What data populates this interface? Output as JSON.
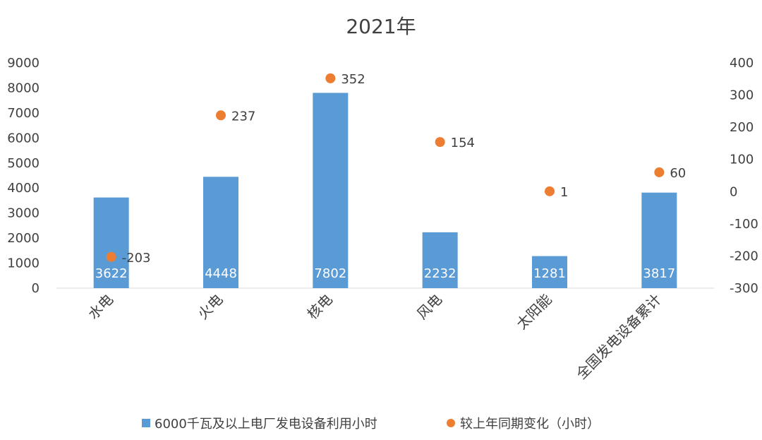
{
  "colors": {
    "bar": "#5b9bd5",
    "dot": "#ed7d31",
    "axis": "#d9d9d9",
    "text": "#404040"
  },
  "chart_data": {
    "type": "bar",
    "title": "2021年",
    "categories": [
      "水电",
      "火电",
      "核电",
      "风电",
      "太阳能",
      "全国发电设备累计"
    ],
    "series": [
      {
        "name": "6000千瓦及以上电厂发电设备利用小时",
        "kind": "bar",
        "axis": "left",
        "values": [
          3622,
          4448,
          7802,
          2232,
          1281,
          3817
        ]
      },
      {
        "name": "较上年同期变化（小时）",
        "kind": "scatter",
        "axis": "right",
        "values": [
          -203,
          237,
          352,
          154,
          1,
          60
        ]
      }
    ],
    "y_left": {
      "min": 0,
      "max": 9000,
      "ticks": [
        0,
        1000,
        2000,
        3000,
        4000,
        5000,
        6000,
        7000,
        8000,
        9000
      ]
    },
    "y_right": {
      "min": -300,
      "max": 400,
      "ticks": [
        -300,
        -200,
        -100,
        0,
        100,
        200,
        300,
        400
      ]
    },
    "legend_position": "bottom",
    "grid": false
  }
}
